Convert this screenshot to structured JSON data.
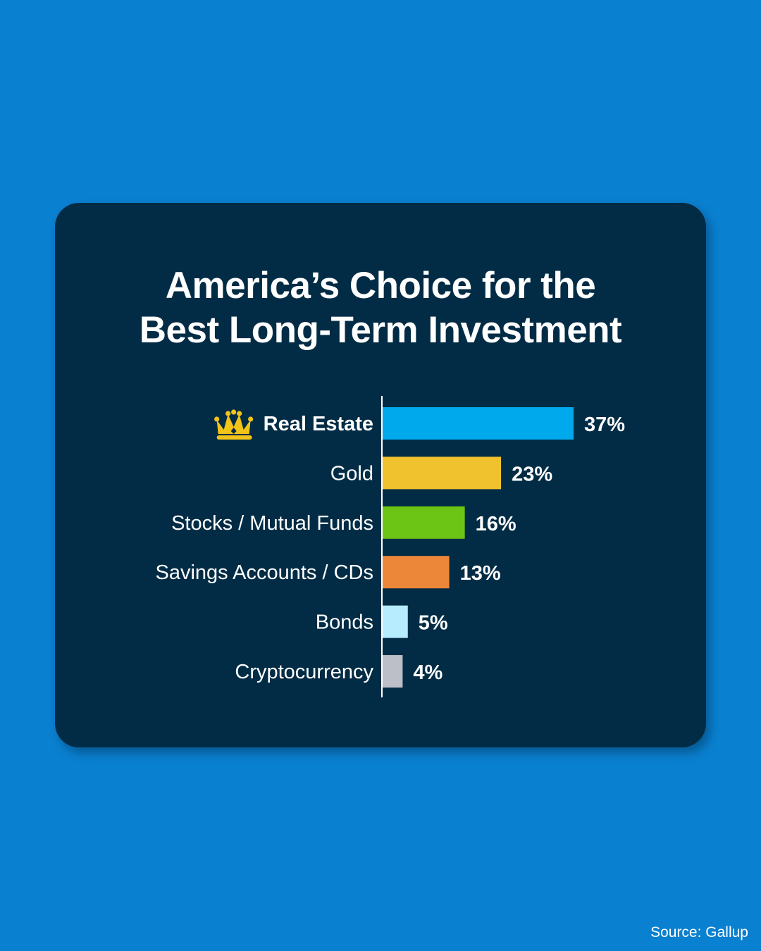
{
  "colors": {
    "background": "#0a80d0",
    "card": "#022c45",
    "crown": "#f2c318"
  },
  "chart_data": {
    "type": "bar",
    "orientation": "horizontal",
    "title": "America’s Choice for the Best Long-Term Investment",
    "title_lines": [
      "America’s Choice for the",
      "Best Long-Term Investment"
    ],
    "categories": [
      "Real Estate",
      "Gold",
      "Stocks / Mutual Funds",
      "Savings Accounts / CDs",
      "Bonds",
      "Cryptocurrency"
    ],
    "values": [
      37,
      23,
      16,
      13,
      5,
      4
    ],
    "value_labels": [
      "37%",
      "23%",
      "16%",
      "13%",
      "5%",
      "4%"
    ],
    "bar_colors": [
      "#00a8ec",
      "#f0c22e",
      "#6cc514",
      "#ec8739",
      "#b7ecff",
      "#bcbfc7"
    ],
    "highlight": {
      "category": "Real Estate",
      "icon": "crown-icon"
    },
    "xlim": [
      0,
      37
    ],
    "grid": false,
    "legend": "none"
  },
  "source": "Source: Gallup"
}
